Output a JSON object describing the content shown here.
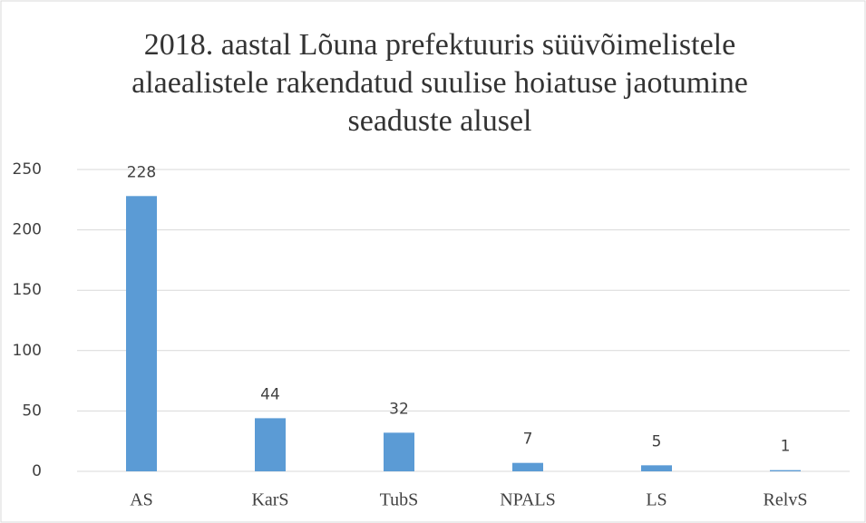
{
  "chart_data": {
    "type": "bar",
    "title": [
      "2018. aastal Lõuna prefektuuris süüvõimelistele",
      "alaealistele rakendatud suulise hoiatuse jaotumine",
      "seaduste alusel"
    ],
    "categories": [
      "AS",
      "KarS",
      "TubS",
      "NPALS",
      "LS",
      "RelvS"
    ],
    "values": [
      228,
      44,
      32,
      7,
      5,
      1
    ],
    "color": "#5b9bd5",
    "ylim": [
      0,
      250
    ],
    "yticks": [
      0,
      50,
      100,
      150,
      200,
      250
    ],
    "grid": true
  }
}
